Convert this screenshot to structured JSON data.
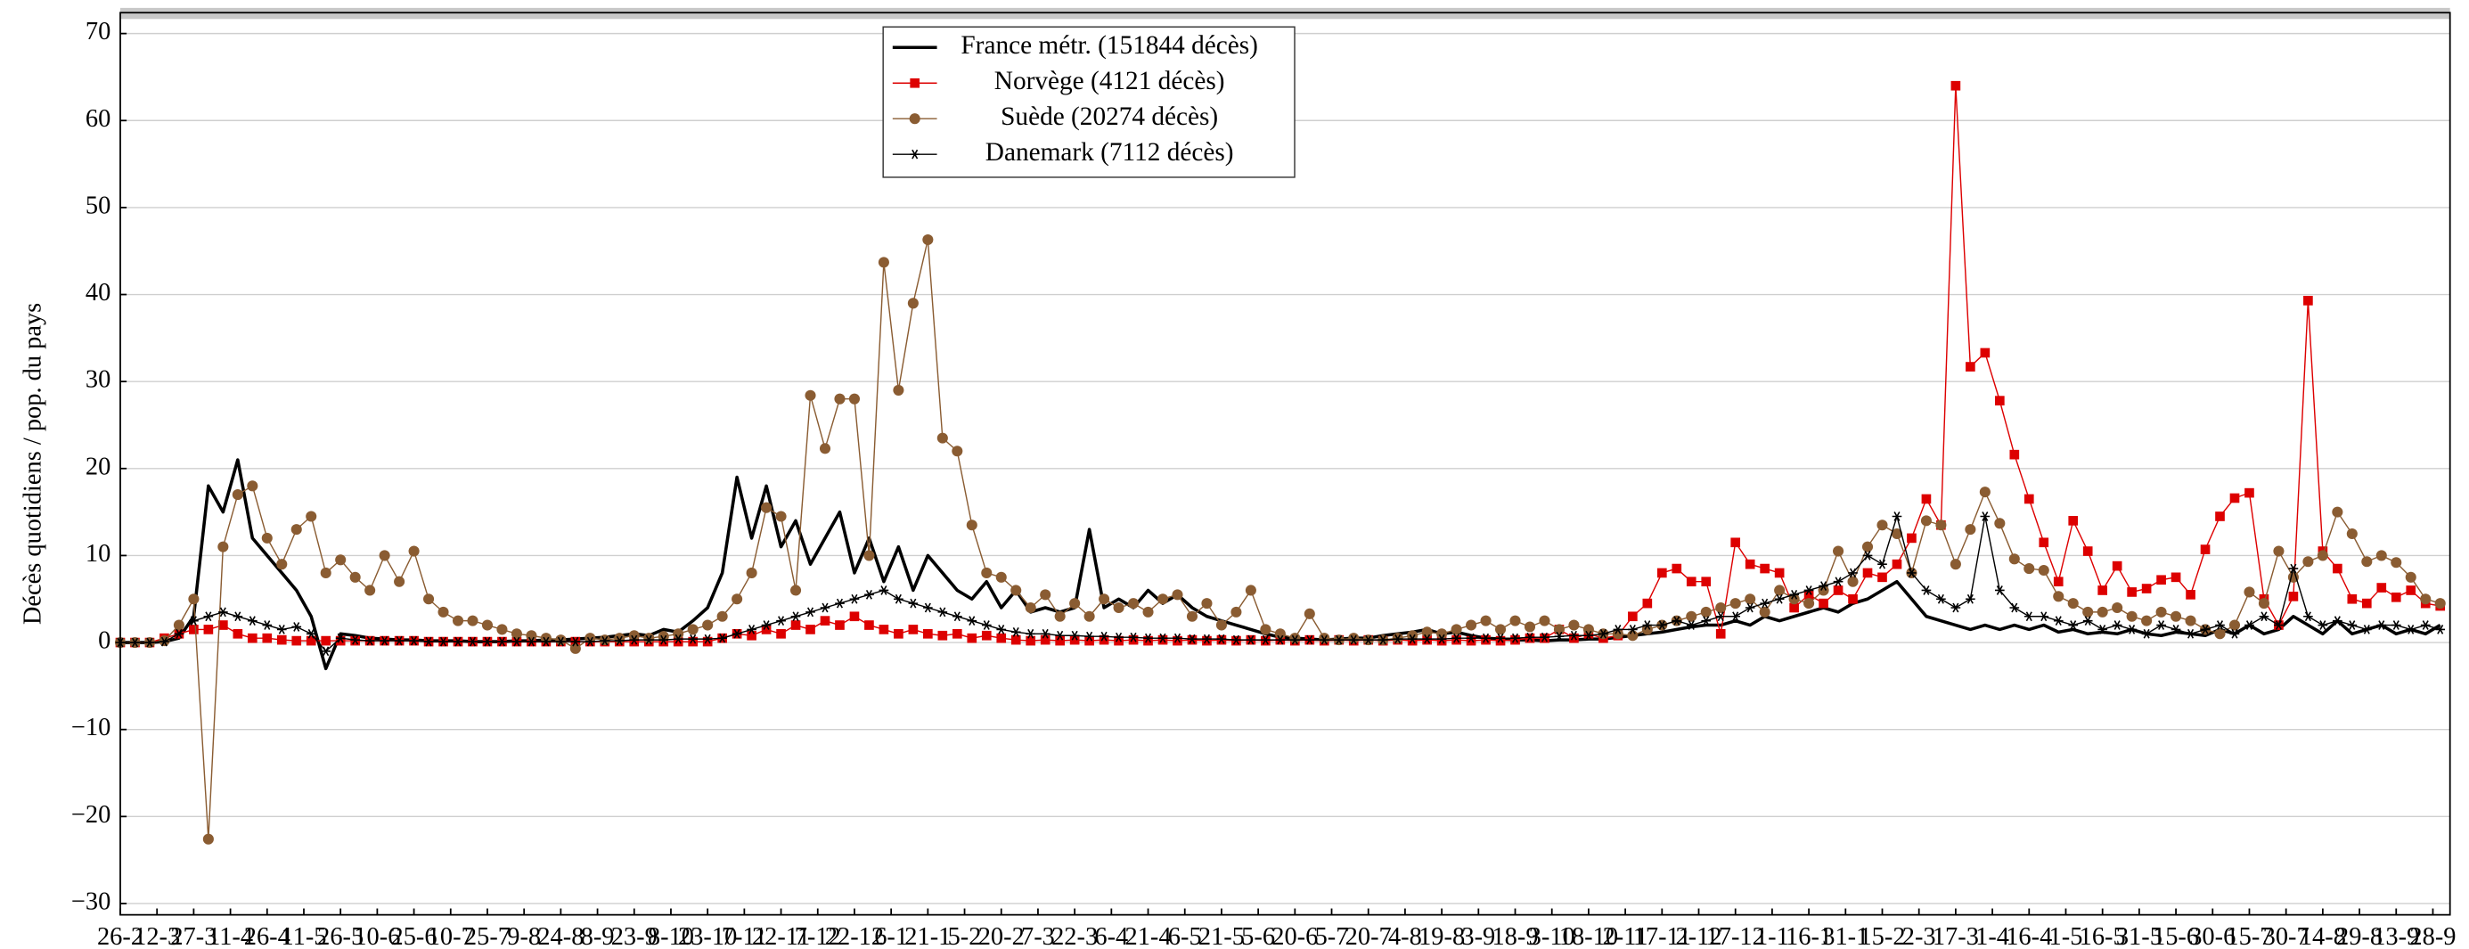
{
  "chart_data": {
    "type": "line",
    "ylabel": "Décès quotidiens / pop. du pays",
    "legend": "upper center",
    "grid": true,
    "xlim": [
      0,
      952
    ],
    "ylim": [
      -31.3,
      72.4
    ],
    "xticks": [
      {
        "value": 0,
        "label": "26-2"
      },
      {
        "value": 15,
        "label": "12-3"
      },
      {
        "value": 30,
        "label": "27-3"
      },
      {
        "value": 45,
        "label": "11-4"
      },
      {
        "value": 60,
        "label": "26-4"
      },
      {
        "value": 75,
        "label": "11-5"
      },
      {
        "value": 90,
        "label": "26-5"
      },
      {
        "value": 105,
        "label": "10-6"
      },
      {
        "value": 120,
        "label": "25-6"
      },
      {
        "value": 135,
        "label": "10-7"
      },
      {
        "value": 150,
        "label": "25-7"
      },
      {
        "value": 165,
        "label": "9-8"
      },
      {
        "value": 180,
        "label": "24-8"
      },
      {
        "value": 195,
        "label": "8-9"
      },
      {
        "value": 210,
        "label": "23-9"
      },
      {
        "value": 225,
        "label": "8-10"
      },
      {
        "value": 240,
        "label": "23-10"
      },
      {
        "value": 255,
        "label": "7-11"
      },
      {
        "value": 270,
        "label": "22-11"
      },
      {
        "value": 285,
        "label": "7-12"
      },
      {
        "value": 300,
        "label": "22-12"
      },
      {
        "value": 315,
        "label": "6-1"
      },
      {
        "value": 330,
        "label": "21-1"
      },
      {
        "value": 345,
        "label": "5-2"
      },
      {
        "value": 360,
        "label": "20-2"
      },
      {
        "value": 375,
        "label": "7-3"
      },
      {
        "value": 390,
        "label": "22-3"
      },
      {
        "value": 405,
        "label": "6-4"
      },
      {
        "value": 420,
        "label": "21-4"
      },
      {
        "value": 435,
        "label": "6-5"
      },
      {
        "value": 450,
        "label": "21-5"
      },
      {
        "value": 465,
        "label": "5-6"
      },
      {
        "value": 480,
        "label": "20-6"
      },
      {
        "value": 495,
        "label": "5-7"
      },
      {
        "value": 510,
        "label": "20-7"
      },
      {
        "value": 525,
        "label": "4-8"
      },
      {
        "value": 540,
        "label": "19-8"
      },
      {
        "value": 555,
        "label": "3-9"
      },
      {
        "value": 570,
        "label": "18-9"
      },
      {
        "value": 585,
        "label": "3-10"
      },
      {
        "value": 600,
        "label": "18-10"
      },
      {
        "value": 615,
        "label": "2-11"
      },
      {
        "value": 630,
        "label": "17-11"
      },
      {
        "value": 645,
        "label": "2-12"
      },
      {
        "value": 660,
        "label": "17-12"
      },
      {
        "value": 675,
        "label": "1-1"
      },
      {
        "value": 690,
        "label": "16-1"
      },
      {
        "value": 705,
        "label": "31-1"
      },
      {
        "value": 720,
        "label": "15-2"
      },
      {
        "value": 735,
        "label": "2-3"
      },
      {
        "value": 750,
        "label": "17-3"
      },
      {
        "value": 765,
        "label": "1-4"
      },
      {
        "value": 780,
        "label": "16-4"
      },
      {
        "value": 795,
        "label": "1-5"
      },
      {
        "value": 810,
        "label": "16-5"
      },
      {
        "value": 825,
        "label": "31-5"
      },
      {
        "value": 840,
        "label": "15-6"
      },
      {
        "value": 855,
        "label": "30-6"
      },
      {
        "value": 870,
        "label": "15-7"
      },
      {
        "value": 885,
        "label": "30-7"
      },
      {
        "value": 900,
        "label": "14-8"
      },
      {
        "value": 915,
        "label": "29-8"
      },
      {
        "value": 930,
        "label": "13-9"
      },
      {
        "value": 945,
        "label": "28-9"
      }
    ],
    "yticks": [
      {
        "value": -30,
        "label": "−30"
      },
      {
        "value": -20,
        "label": "−20"
      },
      {
        "value": -10,
        "label": "−10"
      },
      0,
      10,
      20,
      30,
      40,
      50,
      60,
      70
    ],
    "x": [
      0,
      6,
      12,
      18,
      24,
      30,
      36,
      42,
      48,
      54,
      60,
      66,
      72,
      78,
      84,
      90,
      96,
      102,
      108,
      114,
      120,
      126,
      132,
      138,
      144,
      150,
      156,
      162,
      168,
      174,
      180,
      186,
      192,
      198,
      204,
      210,
      216,
      222,
      228,
      234,
      240,
      246,
      252,
      258,
      264,
      270,
      276,
      282,
      288,
      294,
      300,
      306,
      312,
      318,
      324,
      330,
      336,
      342,
      348,
      354,
      360,
      366,
      372,
      378,
      384,
      390,
      396,
      402,
      408,
      414,
      420,
      426,
      432,
      438,
      444,
      450,
      456,
      462,
      468,
      474,
      480,
      486,
      492,
      498,
      504,
      510,
      516,
      522,
      528,
      534,
      540,
      546,
      552,
      558,
      564,
      570,
      576,
      582,
      588,
      594,
      600,
      606,
      612,
      618,
      624,
      630,
      636,
      642,
      648,
      654,
      660,
      666,
      672,
      678,
      684,
      690,
      696,
      702,
      708,
      714,
      720,
      726,
      732,
      738,
      744,
      750,
      756,
      762,
      768,
      774,
      780,
      786,
      792,
      798,
      804,
      810,
      816,
      822,
      828,
      834,
      840,
      846,
      852,
      858,
      864,
      870,
      876,
      882,
      888,
      894,
      900,
      906,
      912,
      918,
      924,
      930,
      936,
      942,
      948
    ],
    "series": [
      {
        "name": "France métr. (151844 décès)",
        "color": "#000000",
        "marker": "none",
        "values": [
          0,
          0,
          0,
          0.1,
          0.5,
          3,
          18,
          15,
          21,
          12,
          10,
          8,
          6,
          3,
          -3,
          1,
          0.8,
          0.5,
          0.4,
          0.3,
          0.3,
          0.2,
          0.2,
          0.2,
          0.1,
          0.1,
          0.1,
          0.2,
          0.2,
          0.3,
          0.3,
          0.4,
          0.5,
          0.6,
          0.8,
          1,
          0.8,
          1.5,
          1.2,
          2.5,
          4,
          8,
          19,
          12,
          18,
          11,
          14,
          9,
          12,
          15,
          8,
          12,
          7,
          11,
          6,
          10,
          8,
          6,
          5,
          7,
          4,
          6,
          3.5,
          4,
          3.5,
          4,
          13,
          4,
          5,
          4,
          6,
          4.5,
          5.5,
          4,
          3,
          2.5,
          2,
          1.5,
          1,
          0.6,
          0.5,
          0.4,
          0.3,
          0.4,
          0.5,
          0.5,
          0.8,
          1,
          1.2,
          1.5,
          1,
          1.2,
          0.8,
          0.5,
          0.4,
          0.3,
          0.3,
          0.2,
          0.3,
          0.3,
          0.4,
          0.4,
          0.6,
          0.8,
          1,
          1.2,
          1.5,
          1.8,
          2,
          2,
          2.5,
          2,
          3,
          2.5,
          3,
          3.5,
          4,
          3.5,
          4.5,
          5,
          6,
          7,
          5,
          3,
          2.5,
          2,
          1.5,
          2,
          1.5,
          2,
          1.5,
          2,
          1.2,
          1.5,
          1,
          1.2,
          1,
          1.5,
          1,
          0.8,
          1.2,
          1,
          0.8,
          1.5,
          1,
          2,
          1,
          1.5,
          3,
          2,
          1,
          2.5,
          1,
          1.5,
          2,
          1,
          1.5,
          1,
          2
        ]
      },
      {
        "name": "Norvège (4121 décès)",
        "color": "#dd0000",
        "marker": "square",
        "values": [
          0,
          0,
          0,
          0.5,
          1,
          1.5,
          1.5,
          2,
          1,
          0.5,
          0.5,
          0.3,
          0.2,
          0.2,
          0.2,
          0.2,
          0.2,
          0.2,
          0.2,
          0.2,
          0.2,
          0.1,
          0.1,
          0.1,
          0.1,
          0.1,
          0.1,
          0.1,
          0.1,
          0.1,
          0.1,
          0.1,
          0.1,
          0.1,
          0.1,
          0.1,
          0.1,
          0.1,
          0.1,
          0.1,
          0.1,
          0.5,
          1,
          0.8,
          1.5,
          1,
          2,
          1.5,
          2.5,
          2,
          3,
          2,
          1.5,
          1,
          1.5,
          1,
          0.8,
          1,
          0.5,
          0.8,
          0.5,
          0.3,
          0.2,
          0.3,
          0.2,
          0.3,
          0.2,
          0.3,
          0.2,
          0.3,
          0.2,
          0.3,
          0.2,
          0.3,
          0.2,
          0.3,
          0.2,
          0.3,
          0.2,
          0.3,
          0.2,
          0.3,
          0.2,
          0.3,
          0.2,
          0.3,
          0.2,
          0.3,
          0.2,
          0.3,
          0.2,
          0.3,
          0.2,
          0.3,
          0.2,
          0.3,
          0.5,
          0.5,
          1.5,
          0.5,
          1,
          0.5,
          0.8,
          3,
          4.5,
          8,
          8.5,
          7,
          7,
          1,
          11.5,
          9,
          8.5,
          8,
          4,
          5.5,
          4.5,
          6,
          5,
          8,
          7.5,
          9,
          12,
          16.5,
          13.5,
          64,
          31.7,
          33.3,
          27.8,
          21.6,
          16.5,
          11.5,
          7,
          14,
          10.5,
          6,
          8.8,
          5.8,
          6.2,
          7.2,
          7.5,
          5.5,
          10.7,
          14.5,
          16.6,
          17.2,
          5,
          2,
          5.3,
          39.3,
          10.5,
          8.5,
          5,
          4.5,
          6.3,
          5.2,
          6,
          4.5,
          4.2
        ]
      },
      {
        "name": "Suède (20274 décès)",
        "color": "#8a5c32",
        "marker": "circle",
        "values": [
          0,
          0,
          0,
          0.2,
          2,
          5,
          -22.6,
          11,
          17,
          18,
          12,
          9,
          13,
          14.5,
          8,
          9.5,
          7.5,
          6,
          10,
          7,
          10.5,
          5,
          3.5,
          2.5,
          2.5,
          2,
          1.5,
          1,
          0.8,
          0.5,
          0.3,
          -0.7,
          0.5,
          0.3,
          0.5,
          0.8,
          0.5,
          0.7,
          1,
          1.5,
          2,
          3,
          5,
          8,
          15.5,
          14.5,
          6,
          28.4,
          22.3,
          28,
          28,
          10,
          43.7,
          29,
          39,
          46.3,
          23.5,
          22,
          13.5,
          8,
          7.5,
          6,
          4,
          5.5,
          3,
          4.5,
          3,
          5,
          4,
          4.5,
          3.5,
          5,
          5.5,
          3,
          4.5,
          2,
          3.5,
          6,
          1.5,
          1,
          0.5,
          3.3,
          0.5,
          0.3,
          0.5,
          0.3,
          0.3,
          0.5,
          0.8,
          1.2,
          1,
          1.5,
          2,
          2.5,
          1.5,
          2.5,
          1.8,
          2.5,
          1.5,
          2,
          1.5,
          1,
          1,
          0.8,
          1.5,
          2,
          2.5,
          3,
          3.5,
          4,
          4.5,
          5,
          3.5,
          6,
          5,
          4.5,
          6,
          10.5,
          7,
          11,
          13.5,
          12.5,
          8,
          14,
          13.5,
          9,
          13,
          17.3,
          13.7,
          9.6,
          8.5,
          8.3,
          5.3,
          4.5,
          3.5,
          3.5,
          4,
          3,
          2.5,
          3.5,
          3,
          2.5,
          1.5,
          1,
          2,
          5.8,
          4.5,
          10.5,
          7.5,
          9.3,
          10,
          15,
          12.5,
          9.3,
          10,
          9.2,
          7.5,
          5,
          4.5
        ]
      },
      {
        "name": "Danemark (7112 décès)",
        "color": "#000000",
        "marker": "star",
        "values": [
          0,
          0,
          0,
          0.1,
          1,
          2.5,
          3,
          3.5,
          3,
          2.5,
          2,
          1.5,
          1.8,
          1,
          -1,
          0.5,
          0.3,
          0.2,
          0.2,
          0.2,
          0.2,
          0.1,
          0.1,
          0.1,
          0.1,
          0.1,
          0.1,
          0.1,
          0.1,
          0.1,
          0.1,
          0.1,
          0.1,
          0.2,
          0.2,
          0.3,
          0.3,
          0.3,
          0.4,
          0.4,
          0.4,
          0.5,
          1,
          1.5,
          2,
          2.5,
          3,
          3.5,
          4,
          4.5,
          5,
          5.5,
          6,
          5,
          4.5,
          4,
          3.5,
          3,
          2.5,
          2,
          1.5,
          1.2,
          1,
          1,
          0.8,
          0.8,
          0.7,
          0.7,
          0.6,
          0.6,
          0.5,
          0.5,
          0.5,
          0.4,
          0.4,
          0.4,
          0.3,
          0.3,
          0.3,
          0.3,
          0.3,
          0.3,
          0.3,
          0.3,
          0.3,
          0.3,
          0.3,
          0.4,
          0.4,
          0.4,
          0.4,
          0.5,
          0.5,
          0.5,
          0.5,
          0.5,
          0.6,
          0.6,
          0.7,
          0.8,
          0.8,
          1,
          1.5,
          1.5,
          2,
          2,
          2.5,
          2,
          2.5,
          3,
          3,
          4,
          4.5,
          5,
          5.5,
          6,
          6.5,
          7,
          8,
          10,
          9,
          14.5,
          8,
          6,
          5,
          4,
          5,
          14.5,
          6,
          4,
          3,
          3,
          2.5,
          2,
          2.5,
          1.5,
          2,
          1.5,
          1,
          2,
          1.5,
          1,
          1.5,
          2,
          1,
          2,
          3,
          2,
          8.5,
          3,
          2,
          2.5,
          2,
          1.5,
          2,
          2,
          1.5,
          2,
          1.5
        ]
      }
    ]
  }
}
